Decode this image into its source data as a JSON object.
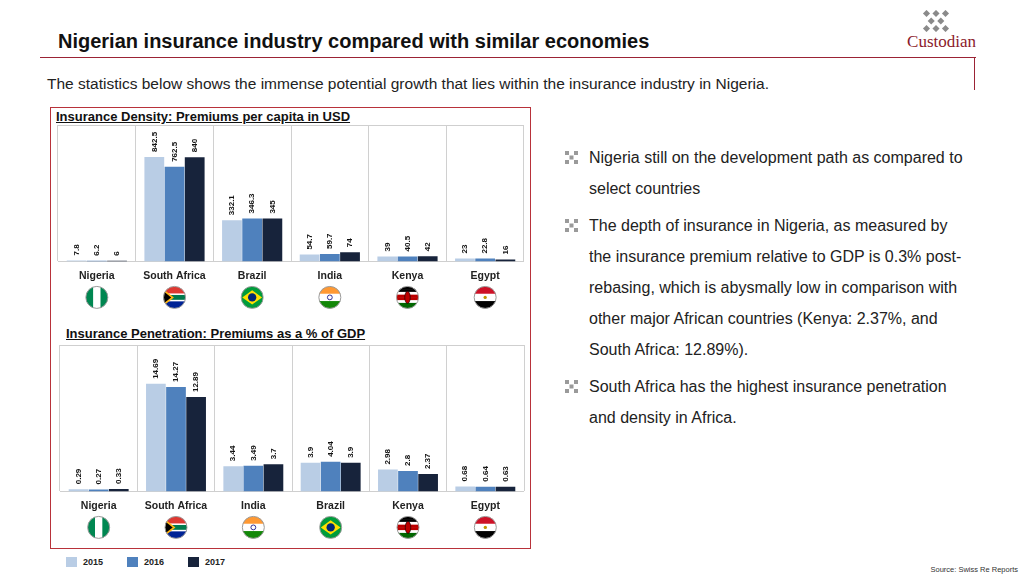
{
  "header": {
    "title": "Nigerian insurance industry compared with similar economies",
    "logo": "Custodian",
    "subtitle": "The statistics below shows the immense potential growth that lies within the insurance industry in Nigeria."
  },
  "bullets": [
    "Nigeria still on the development path as compared to select countries",
    "The depth of insurance in Nigeria, as measured by the insurance premium relative to GDP is 0.3% post-rebasing, which is abysmally low in comparison with other major African countries (Kenya: 2.37%, and South Africa: 12.89%).",
    "South Africa has the highest insurance penetration and density in Africa."
  ],
  "source": "Source: Swiss Re Reports",
  "chart_data": [
    {
      "type": "bar",
      "title": "Insurance Density: Premiums per capita in USD",
      "categories": [
        "Nigeria",
        "South Africa",
        "Brazil",
        "India",
        "Kenya",
        "Egypt"
      ],
      "series": [
        {
          "name": "2015",
          "color": "#b9cde5",
          "values": [
            7.8,
            842.5,
            332.1,
            54.7,
            39,
            23
          ]
        },
        {
          "name": "2016",
          "color": "#4f81bd",
          "values": [
            6.2,
            762.5,
            346.3,
            59.7,
            40.5,
            22.8
          ]
        },
        {
          "name": "2017",
          "color": "#17233b",
          "values": [
            6,
            840,
            345,
            74,
            42,
            16
          ]
        }
      ],
      "ylim": [
        0,
        1100
      ],
      "grid": true,
      "data_labels": true,
      "tick_labels": "x"
    },
    {
      "type": "bar",
      "title": "Insurance Penetration: Premiums as a % of GDP",
      "categories": [
        "Nigeria",
        "South Africa",
        "India",
        "Brazil",
        "Kenya",
        "Egypt"
      ],
      "series": [
        {
          "name": "2015",
          "color": "#b9cde5",
          "values": [
            0.29,
            14.69,
            3.44,
            3.9,
            2.98,
            0.68
          ]
        },
        {
          "name": "2016",
          "color": "#4f81bd",
          "values": [
            0.27,
            14.27,
            3.49,
            4.04,
            2.8,
            0.64
          ]
        },
        {
          "name": "2017",
          "color": "#17233b",
          "values": [
            0.33,
            12.89,
            3.7,
            3.9,
            2.37,
            0.63
          ]
        }
      ],
      "ylim": [
        0,
        20
      ],
      "grid": true,
      "data_labels": true,
      "tick_labels": "x",
      "legend": "bottom"
    }
  ]
}
